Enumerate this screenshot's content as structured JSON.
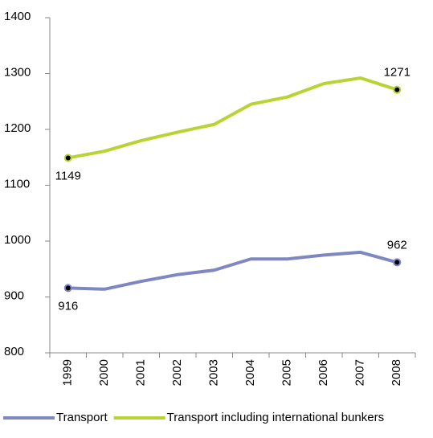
{
  "chart_data": {
    "type": "line",
    "categories": [
      "1999",
      "2000",
      "2001",
      "2002",
      "2003",
      "2004",
      "2005",
      "2006",
      "2007",
      "2008"
    ],
    "series": [
      {
        "name": "Transport",
        "color": "#7f87c2",
        "values": [
          916,
          914,
          928,
          940,
          948,
          968,
          968,
          975,
          980,
          962
        ]
      },
      {
        "name": "Transport including international bunkers",
        "color": "#b7d433",
        "values": [
          1149,
          1161,
          1180,
          1195,
          1209,
          1245,
          1258,
          1282,
          1292,
          1271
        ]
      }
    ],
    "ylim": [
      800,
      1400
    ],
    "yticks": [
      800,
      900,
      1000,
      1100,
      1200,
      1300,
      1400
    ],
    "grid": false,
    "point_labels": "first-last",
    "legend": "bottom"
  }
}
